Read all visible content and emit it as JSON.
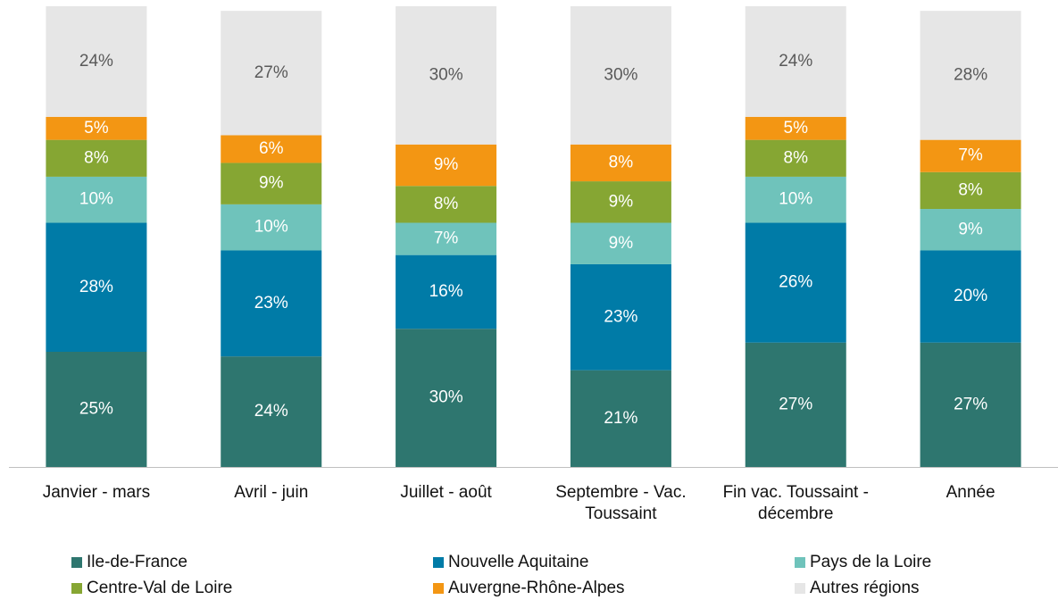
{
  "chart_data": {
    "type": "stacked_bar",
    "categories": [
      "Janvier - mars",
      "Avril - juin",
      "Juillet - août",
      "Septembre - Vac. Toussaint",
      "Fin vac. Toussaint - décembre",
      "Année"
    ],
    "ylim": [
      0,
      100
    ],
    "series": [
      {
        "name": "Ile-de-France",
        "color": "#2e766f",
        "values": [
          25,
          24,
          30,
          21,
          27,
          27
        ],
        "value_labels": [
          "25%",
          "24%",
          "30%",
          "21%",
          "27%",
          "27%"
        ]
      },
      {
        "name": "Nouvelle Aquitaine",
        "color": "#007ba7",
        "values": [
          28,
          23,
          16,
          23,
          26,
          20
        ],
        "value_labels": [
          "28%",
          "23%",
          "16%",
          "23%",
          "26%",
          "20%"
        ]
      },
      {
        "name": "Pays de la Loire",
        "color": "#6fc3bb",
        "values": [
          10,
          10,
          7,
          9,
          10,
          9
        ],
        "value_labels": [
          "10%",
          "10%",
          "7%",
          "9%",
          "10%",
          "9%"
        ]
      },
      {
        "name": "Centre-Val de Loire",
        "color": "#86a633",
        "values": [
          8,
          9,
          8,
          9,
          8,
          8
        ],
        "value_labels": [
          "8%",
          "9%",
          "8%",
          "9%",
          "8%",
          "8%"
        ]
      },
      {
        "name": "Auvergne-Rhône-Alpes",
        "color": "#f39613",
        "values": [
          5,
          6,
          9,
          8,
          5,
          7
        ],
        "value_labels": [
          "5%",
          "6%",
          "9%",
          "8%",
          "5%",
          "7%"
        ]
      },
      {
        "name": "Autres régions",
        "color": "#e6e6e6",
        "values": [
          24,
          27,
          30,
          30,
          24,
          28
        ],
        "value_labels": [
          "24%",
          "27%",
          "30%",
          "30%",
          "24%",
          "28%"
        ]
      }
    ]
  }
}
